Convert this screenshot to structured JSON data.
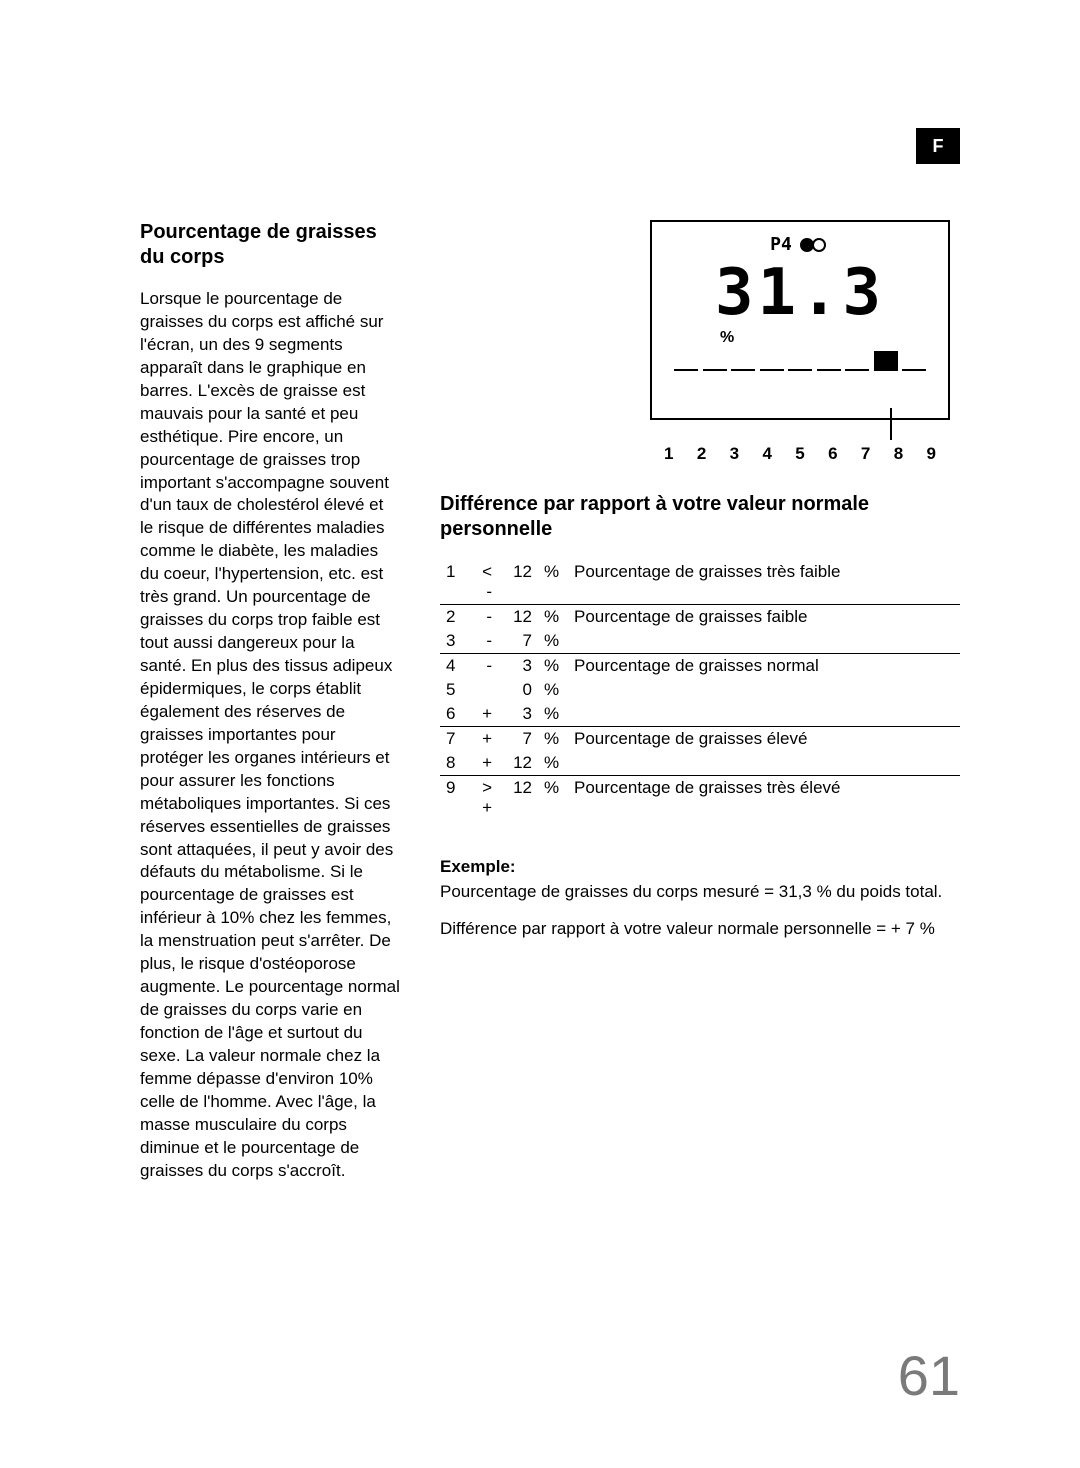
{
  "lang_tab": "F",
  "left": {
    "title": "Pourcentage de graisses du corps",
    "body": "Lorsque le pourcentage de graisses du corps est affiché sur l'écran, un des 9 segments apparaît dans le graphique en barres. L'excès de graisse est mauvais pour la santé et peu esthétique. Pire encore, un pourcentage de graisses trop important s'accompagne souvent d'un taux de cholestérol élevé et le risque de différentes maladies comme le diabète, les maladies du coeur, l'hypertension, etc. est très grand. Un pourcentage de graisses du corps trop faible est tout aussi dangereux pour la santé. En plus des tissus adipeux épidermiques, le corps établit également des réserves de graisses importantes pour protéger les organes intérieurs et pour assurer les fonctions métaboliques importantes. Si ces réserves essentielles de graisses sont attaquées, il peut y avoir des défauts du métabolisme. Si le pourcentage de graisses est inférieur à 10% chez les femmes, la menstruation peut s'arrêter. De plus, le risque d'ostéoporose augmente. Le pourcentage normal de graisses du corps varie en fonction de l'âge et surtout du sexe. La valeur normale chez la femme dépasse d'environ 10% celle de l'homme. Avec l'âge, la masse musculaire du corps diminue et le pourcentage de graisses du corps s'accroît."
  },
  "display": {
    "profile": "P4",
    "value": "31.3",
    "unit": "%",
    "segments": 9,
    "highlighted_index": 7,
    "axis": [
      "1",
      "2",
      "3",
      "4",
      "5",
      "6",
      "7",
      "8",
      "9"
    ]
  },
  "diff": {
    "title": "Différence par rapport à votre valeur normale personnelle",
    "rows": [
      {
        "idx": "1",
        "sign": "< -",
        "val": "12",
        "unit": "%",
        "desc": "Pourcentage de graisses très faible",
        "rule": false
      },
      {
        "idx": "2",
        "sign": "-",
        "val": "12",
        "unit": "%",
        "desc": "Pourcentage de graisses faible",
        "rule": true
      },
      {
        "idx": "3",
        "sign": "-",
        "val": "7",
        "unit": "%",
        "desc": "",
        "rule": false
      },
      {
        "idx": "4",
        "sign": "-",
        "val": "3",
        "unit": "%",
        "desc": "Pourcentage de graisses normal",
        "rule": true
      },
      {
        "idx": "5",
        "sign": "",
        "val": "0",
        "unit": "%",
        "desc": "",
        "rule": false
      },
      {
        "idx": "6",
        "sign": "+",
        "val": "3",
        "unit": "%",
        "desc": "",
        "rule": false
      },
      {
        "idx": "7",
        "sign": "+",
        "val": "7",
        "unit": "%",
        "desc": "Pourcentage de graisses élevé",
        "rule": true
      },
      {
        "idx": "8",
        "sign": "+",
        "val": "12",
        "unit": "%",
        "desc": "",
        "rule": false
      },
      {
        "idx": "9",
        "sign": "> +",
        "val": "12",
        "unit": "%",
        "desc": "Pourcentage de graisses très élevé",
        "rule": true
      }
    ]
  },
  "example": {
    "label": "Exemple:",
    "line1": "Pourcentage de graisses du corps mesuré = 31,3 % du poids total.",
    "line2": "Différence par rapport à votre valeur normale personnelle = + 7 %"
  },
  "page_number": "61"
}
